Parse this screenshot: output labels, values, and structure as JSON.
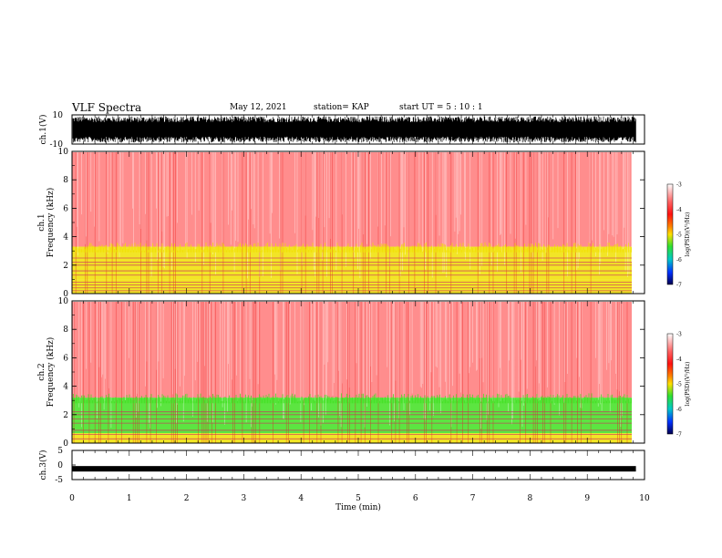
{
  "header": {
    "title": "VLF Spectra",
    "date": "May 12, 2021",
    "station": "station= KAP",
    "start": "start  UT =   5 : 10 : 1"
  },
  "colors": {
    "spectrum_background": "#ff3030",
    "spectrum_mid": "#f0e000",
    "spectrum_low": "#40e020",
    "noise_line": "#cc3060",
    "waveform": "#000000"
  },
  "chart_data": [
    {
      "type": "line",
      "panel": "ch1-waveform",
      "ylabel": "ch.1(V)",
      "ylim": [
        -10,
        10
      ],
      "yticks": [
        "10",
        "-10"
      ],
      "xlim": [
        0,
        10
      ],
      "description_values": {
        "envelope_max": 9,
        "envelope_min": -9
      }
    },
    {
      "type": "heatmap",
      "panel": "ch1-spectrogram",
      "ylabel": "ch.1 Frequency (kHz)",
      "ylim": [
        0,
        10
      ],
      "yticks": [
        "0",
        "2",
        "4",
        "6",
        "8",
        "10"
      ],
      "xlim": [
        0,
        9.85
      ],
      "colorbar": {
        "label": "log(PSD)(V²/Hz)",
        "range": [
          -7,
          -3
        ],
        "ticks": [
          "-3",
          "-4",
          "-5",
          "-6",
          "-7"
        ]
      },
      "bands": [
        {
          "from_khz": 0,
          "to_khz": 1.0,
          "level": -4.2
        },
        {
          "from_khz": 1.0,
          "to_khz": 3.3,
          "level": -4.6
        },
        {
          "from_khz": 3.3,
          "to_khz": 10,
          "level": -3.3
        }
      ],
      "noise_lines_khz": [
        0.2,
        0.4,
        0.6,
        0.8,
        1.3,
        1.6,
        2.0,
        2.2,
        2.5
      ]
    },
    {
      "type": "heatmap",
      "panel": "ch2-spectrogram",
      "ylabel": "ch.2 Frequency (kHz)",
      "ylim": [
        0,
        10
      ],
      "yticks": [
        "0",
        "2",
        "4",
        "6",
        "8",
        "10"
      ],
      "xlim": [
        0,
        9.85
      ],
      "colorbar": {
        "label": "log(PSD)(V²/Hz)",
        "range": [
          -7,
          -3
        ],
        "ticks": [
          "-3",
          "-4",
          "-5",
          "-6",
          "-7"
        ]
      },
      "bands": [
        {
          "from_khz": 0,
          "to_khz": 0.7,
          "level": -4.2
        },
        {
          "from_khz": 0.7,
          "to_khz": 3.2,
          "level": -5.0
        },
        {
          "from_khz": 3.2,
          "to_khz": 10,
          "level": -3.3
        }
      ],
      "noise_lines_khz": [
        0.3,
        0.6,
        0.9,
        1.4,
        1.7,
        2.0,
        2.2
      ]
    },
    {
      "type": "line",
      "panel": "ch3-waveform",
      "ylabel": "ch.3(V)",
      "ylim": [
        -5,
        5
      ],
      "yticks": [
        "5",
        "0",
        "-5"
      ],
      "xlim": [
        0,
        10
      ],
      "description_values": {
        "level": -1.3
      }
    }
  ],
  "xaxis": {
    "label": "Time  (min)",
    "ticks": [
      "0",
      "1",
      "2",
      "3",
      "4",
      "5",
      "6",
      "7",
      "8",
      "9",
      "10"
    ]
  }
}
